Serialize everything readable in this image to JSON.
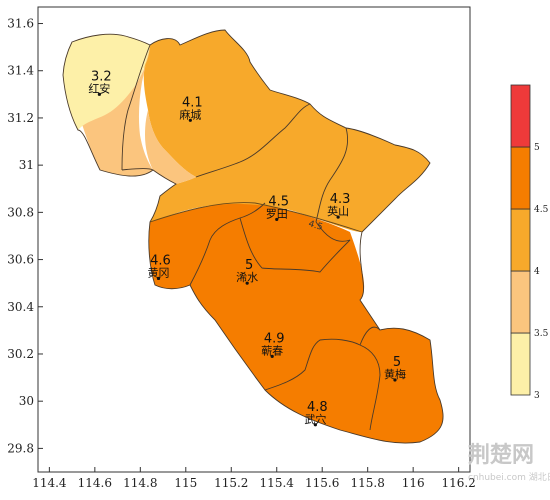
{
  "map": {
    "x_ticks": [
      "114.4",
      "114.6",
      "114.8",
      "115",
      "115.2",
      "115.4",
      "115.6",
      "115.8",
      "116",
      "116.2"
    ],
    "y_ticks": [
      "31.6",
      "31.4",
      "31.2",
      "31",
      "30.8",
      "30.6",
      "30.4",
      "30.2",
      "30",
      "29.8"
    ],
    "xlim": [
      114.35,
      116.25
    ],
    "ylim": [
      29.7,
      31.67
    ],
    "contour_label": "4.5",
    "colors": {
      "band_3_3_5": "#fdf0a8",
      "band_3_5_4": "#fbc57e",
      "band_4_4_5": "#f7a92b",
      "band_4_5_5": "#f57d00",
      "band_5_plus": "#ee3a3a"
    },
    "cities": [
      {
        "name": "红安",
        "value": "3.2",
        "lon": 114.62,
        "lat": 31.3
      },
      {
        "name": "麻城",
        "value": "4.1",
        "lon": 115.02,
        "lat": 31.19
      },
      {
        "name": "罗田",
        "value": "4.5",
        "lon": 115.4,
        "lat": 30.77
      },
      {
        "name": "英山",
        "value": "4.3",
        "lon": 115.67,
        "lat": 30.78
      },
      {
        "name": "黄冈",
        "value": "4.6",
        "lon": 114.88,
        "lat": 30.52
      },
      {
        "name": "浠水",
        "value": "5",
        "lon": 115.27,
        "lat": 30.5
      },
      {
        "name": "蕲春",
        "value": "4.9",
        "lon": 115.38,
        "lat": 30.19
      },
      {
        "name": "黄梅",
        "value": "5",
        "lon": 115.92,
        "lat": 30.09
      },
      {
        "name": "武穴",
        "value": "4.8",
        "lon": 115.57,
        "lat": 29.9
      }
    ]
  },
  "legend": {
    "ticks": [
      "3",
      "3.5",
      "4",
      "4.5",
      "5"
    ]
  },
  "watermark": {
    "main": "荆楚网",
    "sub": "cnhubei.com 湖北日报"
  }
}
